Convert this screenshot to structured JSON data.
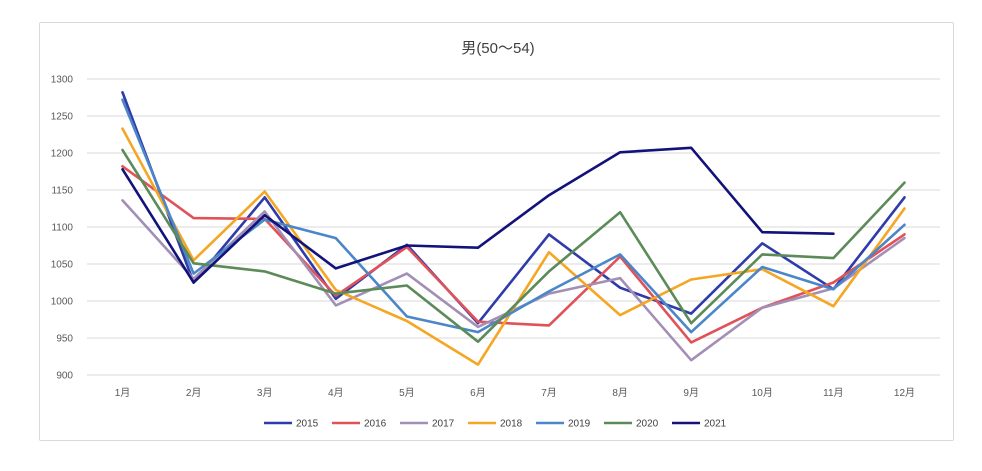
{
  "chart_data": {
    "type": "line",
    "title": "男(50～54)",
    "xlabel": "",
    "ylabel": "",
    "categories": [
      "1月",
      "2月",
      "3月",
      "4月",
      "5月",
      "6月",
      "7月",
      "8月",
      "9月",
      "10月",
      "11月",
      "12月"
    ],
    "ylim": [
      900,
      1300
    ],
    "yticks": [
      900,
      950,
      1000,
      1050,
      1100,
      1150,
      1200,
      1250,
      1300
    ],
    "grid": true,
    "legend": "bottom",
    "series": [
      {
        "name": "2015",
        "color": "#2e3ba8",
        "values": [
          1282,
          1025,
          1140,
          1003,
          1076,
          970,
          1090,
          1018,
          983,
          1078,
          1016,
          1140
        ]
      },
      {
        "name": "2016",
        "color": "#e05258",
        "values": [
          1182,
          1112,
          1111,
          1007,
          1073,
          972,
          967,
          1060,
          944,
          991,
          1025,
          1090
        ]
      },
      {
        "name": "2017",
        "color": "#a38fb5",
        "values": [
          1136,
          1030,
          1121,
          994,
          1037,
          965,
          1010,
          1031,
          920,
          991,
          1017,
          1085
        ]
      },
      {
        "name": "2018",
        "color": "#f5a623",
        "values": [
          1233,
          1055,
          1148,
          1015,
          973,
          914,
          1066,
          981,
          1029,
          1043,
          993,
          1125
        ]
      },
      {
        "name": "2019",
        "color": "#4a86c8",
        "values": [
          1272,
          1037,
          1110,
          1085,
          979,
          958,
          1013,
          1063,
          958,
          1046,
          1016,
          1103
        ]
      },
      {
        "name": "2020",
        "color": "#5c8a58",
        "values": [
          1204,
          1051,
          1040,
          1010,
          1021,
          945,
          1040,
          1120,
          970,
          1063,
          1058,
          1160
        ]
      },
      {
        "name": "2021",
        "color": "#12127a",
        "values": [
          1178,
          1025,
          1116,
          1044,
          1075,
          1072,
          1143,
          1201,
          1207,
          1093,
          1091,
          null
        ]
      }
    ]
  }
}
